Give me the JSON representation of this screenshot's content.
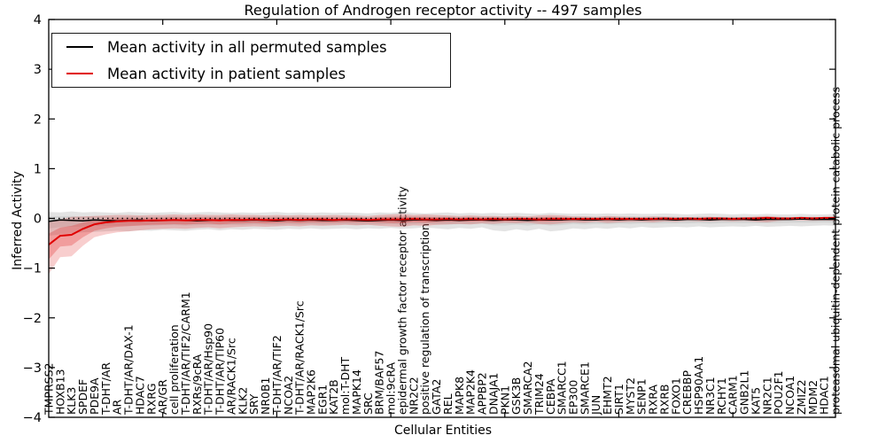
{
  "title": "Regulation of Androgen receptor activity -- 497 samples",
  "chart_data": {
    "type": "line",
    "title": "Regulation of Androgen receptor activity -- 497 samples",
    "xlabel": "Cellular Entities",
    "ylabel": "Inferred Activity",
    "ylim": [
      -4,
      4
    ],
    "yticks": [
      4,
      3,
      2,
      1,
      0,
      -1,
      -2,
      -3,
      -4
    ],
    "grid": false,
    "legend_position": "upper left",
    "zero_line_dotted": true,
    "categories": [
      "TMPRSS2",
      "HOXB13",
      "KLK3",
      "SPDEF",
      "PDE9A",
      "T-DHT/AR",
      "AR",
      "T-DHT/AR/DAX-1",
      "HDAC7",
      "RXRG",
      "AR/GR",
      "cell proliferation",
      "T-DHT/AR/TIF2/CARM1",
      "RXRs/9cRA",
      "T-DHT/AR/Hsp90",
      "T-DHT/AR/TIP60",
      "AR/RACK1/Src",
      "KLK2",
      "SRY",
      "NR0B1",
      "T-DHT/AR/TIF2",
      "NCOA2",
      "T-DHT/AR/RACK1/Src",
      "MAP2K6",
      "EGR1",
      "KAT2B",
      "mol:T-DHT",
      "MAPK14",
      "SRC",
      "BRM/BAF57",
      "mol:9cRA",
      "epidermal growth factor receptor activity",
      "NR2C2",
      "positive regulation of transcription",
      "GATA2",
      "REL",
      "MAPK8",
      "MAP2K4",
      "APPBP2",
      "DNAJA1",
      "PKN1",
      "GSK3B",
      "SMARCA2",
      "TRIM24",
      "CEBPA",
      "SMARCC1",
      "EP300",
      "SMARCE1",
      "JUN",
      "EHMT2",
      "SIRT1",
      "MYST2",
      "SENP1",
      "RXRA",
      "RXRB",
      "FOXO1",
      "CREBBP",
      "HSP90AA1",
      "NR3C1",
      "RCHY1",
      "CARM1",
      "GNB2L1",
      "KAT5",
      "NR2C1",
      "POU2F1",
      "NCOA1",
      "ZMIZ2",
      "MDM2",
      "HDAC1",
      "proteasomal ubiquitin-dependent protein catabolic process"
    ],
    "series": [
      {
        "name": "Mean activity in all permuted samples",
        "color": "#000000",
        "values": [
          -0.06,
          -0.03,
          -0.04,
          -0.05,
          -0.03,
          -0.04,
          -0.05,
          -0.04,
          -0.03,
          -0.05,
          -0.04,
          -0.03,
          -0.04,
          -0.05,
          -0.04,
          -0.03,
          -0.04,
          -0.04,
          -0.03,
          -0.04,
          -0.05,
          -0.03,
          -0.04,
          -0.03,
          -0.04,
          -0.04,
          -0.03,
          -0.04,
          -0.05,
          -0.04,
          -0.03,
          -0.04,
          -0.03,
          -0.03,
          -0.04,
          -0.03,
          -0.04,
          -0.03,
          -0.03,
          -0.04,
          -0.03,
          -0.03,
          -0.04,
          -0.03,
          -0.03,
          -0.03,
          -0.02,
          -0.03,
          -0.03,
          -0.02,
          -0.03,
          -0.02,
          -0.03,
          -0.02,
          -0.02,
          -0.03,
          -0.02,
          -0.02,
          -0.03,
          -0.02,
          -0.02,
          -0.02,
          -0.03,
          -0.02,
          -0.02,
          -0.02,
          -0.01,
          -0.02,
          -0.02,
          -0.02
        ]
      },
      {
        "name": "Mean activity in patient samples",
        "color": "#e00000",
        "values": [
          -0.53,
          -0.35,
          -0.33,
          -0.21,
          -0.12,
          -0.08,
          -0.06,
          -0.05,
          -0.05,
          -0.04,
          -0.04,
          -0.03,
          -0.04,
          -0.03,
          -0.03,
          -0.04,
          -0.03,
          -0.03,
          -0.02,
          -0.03,
          -0.03,
          -0.02,
          -0.03,
          -0.02,
          -0.02,
          -0.03,
          -0.02,
          -0.02,
          -0.03,
          -0.02,
          -0.02,
          -0.02,
          -0.01,
          -0.02,
          -0.02,
          -0.01,
          -0.02,
          -0.01,
          -0.02,
          -0.01,
          -0.02,
          -0.01,
          -0.01,
          -0.02,
          -0.01,
          -0.01,
          -0.01,
          -0.01,
          -0.01,
          -0.01,
          -0.01,
          -0.01,
          -0.01,
          -0.01,
          0,
          -0.01,
          0,
          -0.01,
          0,
          0,
          -0.01,
          0,
          0,
          0.01,
          0,
          0,
          0.01,
          0,
          0.01,
          0.01
        ]
      }
    ],
    "bands": [
      {
        "name": "permuted-samples-envelope",
        "series": 0,
        "color": "#808080",
        "outer_opacity": 0.22,
        "inner_opacity": 0.15,
        "upper": [
          0.13,
          0.12,
          0.14,
          0.12,
          0.13,
          0.12,
          0.11,
          0.13,
          0.12,
          0.11,
          0.12,
          0.13,
          0.11,
          0.12,
          0.13,
          0.12,
          0.11,
          0.12,
          0.11,
          0.12,
          0.13,
          0.11,
          0.12,
          0.11,
          0.12,
          0.11,
          0.12,
          0.11,
          0.1,
          0.12,
          0.11,
          0.13,
          0.11,
          0.1,
          0.11,
          0.12,
          0.1,
          0.11,
          0.1,
          0.11,
          0.1,
          0.11,
          0.1,
          0.09,
          0.11,
          0.1,
          0.09,
          0.1,
          0.09,
          0.1,
          0.09,
          0.1,
          0.09,
          0.09,
          0.1,
          0.09,
          0.08,
          0.09,
          0.1,
          0.09,
          0.08,
          0.09,
          0.08,
          0.09,
          0.08,
          0.08,
          0.09,
          0.08,
          0.08,
          0.09
        ],
        "lower": [
          -0.35,
          -0.32,
          -0.3,
          -0.28,
          -0.27,
          -0.26,
          -0.25,
          -0.26,
          -0.24,
          -0.25,
          -0.23,
          -0.24,
          -0.25,
          -0.23,
          -0.22,
          -0.24,
          -0.22,
          -0.23,
          -0.21,
          -0.22,
          -0.23,
          -0.21,
          -0.22,
          -0.2,
          -0.22,
          -0.21,
          -0.2,
          -0.22,
          -0.2,
          -0.21,
          -0.19,
          -0.21,
          -0.2,
          -0.18,
          -0.2,
          -0.22,
          -0.19,
          -0.21,
          -0.18,
          -0.24,
          -0.26,
          -0.22,
          -0.25,
          -0.21,
          -0.26,
          -0.24,
          -0.2,
          -0.22,
          -0.19,
          -0.21,
          -0.18,
          -0.2,
          -0.17,
          -0.19,
          -0.18,
          -0.17,
          -0.18,
          -0.16,
          -0.18,
          -0.17,
          -0.16,
          -0.17,
          -0.15,
          -0.17,
          -0.16,
          -0.15,
          -0.16,
          -0.15,
          -0.14,
          -0.15
        ]
      },
      {
        "name": "patient-samples-envelope",
        "series": 1,
        "color": "#dd2020",
        "outer_opacity": 0.22,
        "inner_opacity": 0.28,
        "upper": [
          -0.08,
          -0.02,
          0.03,
          0.04,
          0.05,
          0.06,
          0.07,
          0.07,
          0.06,
          0.07,
          0.07,
          0.08,
          0.07,
          0.08,
          0.07,
          0.07,
          0.08,
          0.07,
          0.07,
          0.06,
          0.07,
          0.06,
          0.07,
          0.06,
          0.06,
          0.07,
          0.06,
          0.06,
          0.05,
          0.07,
          0.08,
          0.09,
          0.07,
          0.08,
          0.07,
          0.06,
          0.05,
          0.06,
          0.05,
          0.05,
          0.04,
          0.05,
          0.04,
          0.06,
          0.07,
          0.06,
          0.04,
          0.04,
          0.03,
          0.05,
          0.04,
          0.03,
          0.03,
          0.04,
          0.03,
          0.03,
          0.02,
          0.03,
          0.03,
          0.02,
          0.03,
          0.02,
          0.04,
          0.05,
          0.03,
          0.02,
          0.02,
          0.03,
          0.02,
          0.03
        ],
        "lower": [
          -1.12,
          -0.78,
          -0.76,
          -0.55,
          -0.38,
          -0.32,
          -0.28,
          -0.26,
          -0.24,
          -0.22,
          -0.21,
          -0.2,
          -0.21,
          -0.19,
          -0.18,
          -0.2,
          -0.18,
          -0.17,
          -0.16,
          -0.17,
          -0.16,
          -0.15,
          -0.16,
          -0.14,
          -0.15,
          -0.14,
          -0.13,
          -0.14,
          -0.13,
          -0.15,
          -0.16,
          -0.17,
          -0.14,
          -0.15,
          -0.13,
          -0.12,
          -0.11,
          -0.12,
          -0.1,
          -0.11,
          -0.09,
          -0.1,
          -0.09,
          -0.11,
          -0.12,
          -0.1,
          -0.08,
          -0.09,
          -0.07,
          -0.09,
          -0.08,
          -0.07,
          -0.07,
          -0.08,
          -0.06,
          -0.07,
          -0.05,
          -0.06,
          -0.06,
          -0.05,
          -0.06,
          -0.05,
          -0.07,
          -0.08,
          -0.05,
          -0.04,
          -0.04,
          -0.05,
          -0.04,
          -0.05
        ]
      }
    ]
  }
}
